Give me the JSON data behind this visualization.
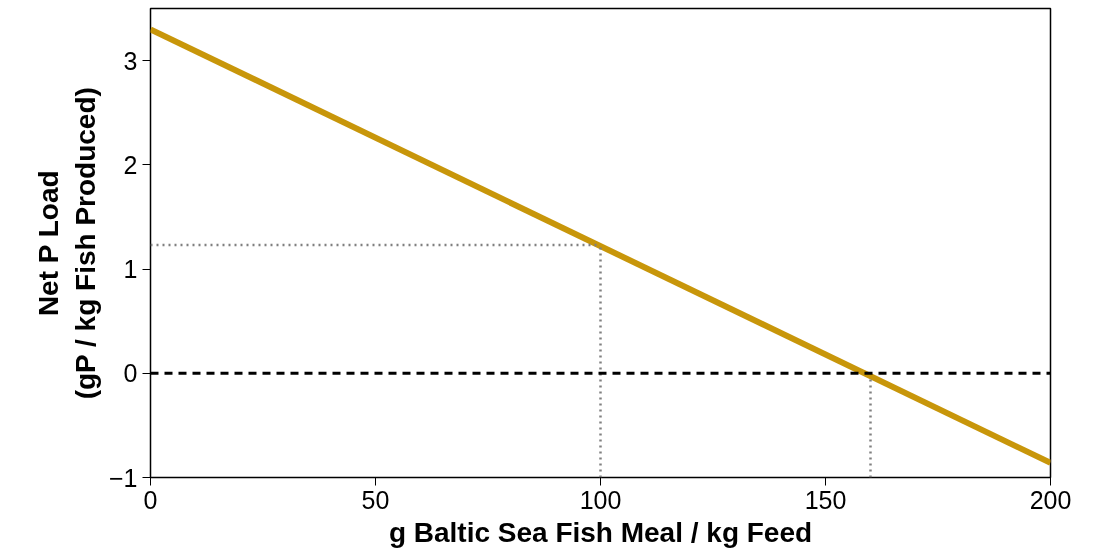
{
  "chart_data": {
    "type": "line",
    "xlabel": "g Baltic Sea Fish Meal / kg Feed",
    "ylabel": "Net P Load\n(gP / kg Fish Produced)",
    "xlim": [
      0,
      200
    ],
    "ylim": [
      -1,
      3.5
    ],
    "xticks": [
      0,
      50,
      100,
      150,
      200
    ],
    "yticks": [
      -1,
      0,
      1,
      2,
      3
    ],
    "grid": false,
    "series": [
      {
        "color": "#c8960a",
        "x": [
          0,
          200
        ],
        "values": [
          3.3,
          -0.86
        ],
        "line_style": "solid"
      },
      {
        "color": "#808080",
        "x": [
          0,
          100
        ],
        "values": [
          1.23,
          1.23
        ],
        "line_style": "dotted"
      },
      {
        "color": "#808080",
        "x": [
          100,
          100
        ],
        "values": [
          -1,
          1.23
        ],
        "line_style": "dotted"
      },
      {
        "color": "#808080",
        "x": [
          160,
          160
        ],
        "values": [
          -1,
          -0.03
        ],
        "line_style": "dotted"
      }
    ],
    "ref_lines": [
      {
        "axis": "y",
        "value": 0,
        "color": "#000000",
        "line_style": "dashed"
      }
    ]
  }
}
